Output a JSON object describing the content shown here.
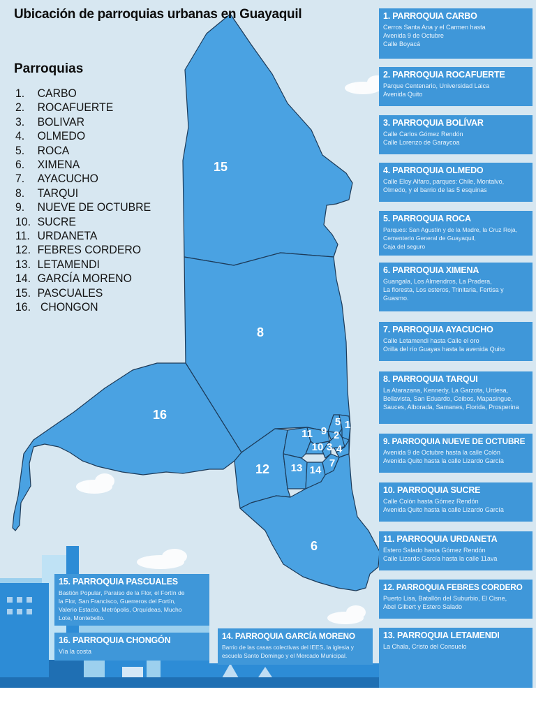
{
  "title": "Ubicación de parroquias urbanas en Guayaquil",
  "legend": {
    "heading": "Parroquias",
    "items": [
      {
        "num": "1.",
        "name": "CARBO"
      },
      {
        "num": "2.",
        "name": "ROCAFUERTE"
      },
      {
        "num": "3.",
        "name": "BOLIVAR"
      },
      {
        "num": "4.",
        "name": "OLMEDO"
      },
      {
        "num": "5.",
        "name": "ROCA"
      },
      {
        "num": "6.",
        "name": "XIMENA"
      },
      {
        "num": "7.",
        "name": "AYACUCHO"
      },
      {
        "num": "8.",
        "name": "TARQUI"
      },
      {
        "num": "9.",
        "name": "NUEVE DE OCTUBRE"
      },
      {
        "num": "10.",
        "name": "SUCRE"
      },
      {
        "num": "11.",
        "name": "URDANETA"
      },
      {
        "num": "12.",
        "name": "FEBRES CORDERO"
      },
      {
        "num": "13.",
        "name": "LETAMENDI"
      },
      {
        "num": "14.",
        "name": "GARCÍA MORENO"
      },
      {
        "num": "15.",
        "name": "PASCUALES"
      },
      {
        "num": "16.",
        "name": " CHONGON"
      }
    ]
  },
  "cards": [
    {
      "id": "carbo",
      "title": "1. PARROQUIA CARBO",
      "desc": [
        "Cerros Santa Ana y el Carmen hasta",
        "Avenida 9 de Octubre",
        "Calle Boyacá"
      ]
    },
    {
      "id": "rocafuerte",
      "title": "2. PARROQUIA ROCAFUERTE",
      "desc": [
        "Parque Centenario, Universidad Laica",
        "Avenida Quito"
      ]
    },
    {
      "id": "bolivar",
      "title": "3. PARROQUIA BOLÍVAR",
      "desc": [
        "Calle Carlos Gómez Rendón",
        "Calle Lorenzo de Garaycoa"
      ]
    },
    {
      "id": "olmedo",
      "title": "4. PARROQUIA OLMEDO",
      "desc": [
        "Calle Eloy Alfaro, parques: Chile, Montalvo,",
        "Olmedo, y el barrio de las 5 esquinas"
      ]
    },
    {
      "id": "roca",
      "title": "5. PARROQUIA ROCA",
      "desc": [
        "Parques: San Agustín y de la Madre, la Cruz Roja,",
        "Cementerio General de Guayaquil,",
        "Caja del seguro"
      ]
    },
    {
      "id": "ximena",
      "title": "6. PARROQUIA XIMENA",
      "desc": [
        "Guangala, Los Almendros, La Pradera,",
        "La floresta, Los esteros, Trinitaria, Fertisa y",
        "Guasmo."
      ]
    },
    {
      "id": "ayacucho",
      "title": "7. PARROQUIA AYACUCHO",
      "desc": [
        "Calle Letamendi hasta Calle el oro",
        "Orilla del río Guayas hasta la avenida Quito"
      ]
    },
    {
      "id": "tarqui",
      "title": "8. PARROQUIA TARQUI",
      "desc": [
        "La Atarazana, Kennedy, La Garzota, Urdesa,",
        "Bellavista, San Eduardo, Ceibos, Mapasingue,",
        "Sauces, Alborada, Samanes, Florida, Prosperina"
      ]
    },
    {
      "id": "nueve-de-octubre",
      "title": "9. PARROQUIA NUEVE DE OCTUBRE",
      "desc": [
        "Avenida 9 de Octubre hasta la calle Colón",
        "Avenida Quito hasta la calle Lizardo García"
      ]
    },
    {
      "id": "sucre",
      "title": "10. PARROQUIA SUCRE",
      "desc": [
        "Calle Colón hasta Gómez Rendón",
        "Avenida Quito hasta la calle Lizardo García"
      ]
    },
    {
      "id": "urdaneta",
      "title": "11. PARROQUIA URDANETA",
      "desc": [
        "Estero Salado hasta Gómez Rendón",
        "Calle Lizardo García hasta la calle 11ava"
      ]
    },
    {
      "id": "febres-cordero",
      "title": "12. PARROQUIA FEBRES CORDERO",
      "desc": [
        "Puerto Lisa, Batallón del Suburbio, El Cisne,",
        "Abel Gilbert y Estero Salado"
      ]
    },
    {
      "id": "letamendi",
      "title": "13. PARROQUIA LETAMENDI",
      "desc": [
        "La Chala, Cristo del Consuelo"
      ]
    },
    {
      "id": "pascuales",
      "title": "15. PARROQUIA PASCUALES",
      "desc": [
        "Bastión Popular, Paraíso de la Flor, el Fortín de",
        "la Flor, San Francisco, Guerreros del Fortín,",
        "Valerio Estacio, Metrópolis, Orquídeas, Mucho",
        "Lote, Montebello."
      ]
    },
    {
      "id": "chongon",
      "title": "16. PARROQUIA CHONGÓN",
      "desc": [
        "Vía la costa"
      ]
    },
    {
      "id": "garcia-moreno",
      "title": "14. PARROQUIA GARCÍA MORENO",
      "desc": [
        "Barrio de las casas colectivas del IEES, la iglesia y",
        "escuela Santo Domingo y el Mercado Municipal."
      ]
    }
  ],
  "map_labels": [
    {
      "id": "1",
      "text": "1"
    },
    {
      "id": "2",
      "text": "2"
    },
    {
      "id": "3",
      "text": "3"
    },
    {
      "id": "4",
      "text": "4"
    },
    {
      "id": "5",
      "text": "5"
    },
    {
      "id": "6",
      "text": "6"
    },
    {
      "id": "7",
      "text": "7"
    },
    {
      "id": "8",
      "text": "8"
    },
    {
      "id": "9",
      "text": "9"
    },
    {
      "id": "10",
      "text": "10"
    },
    {
      "id": "11",
      "text": "11"
    },
    {
      "id": "12",
      "text": "12"
    },
    {
      "id": "13",
      "text": "13"
    },
    {
      "id": "14",
      "text": "14"
    },
    {
      "id": "15",
      "text": "15"
    },
    {
      "id": "16",
      "text": "16"
    }
  ],
  "colors": {
    "background": "#d7e7f1",
    "region_fill": "#4aa2e2",
    "region_border": "#1d3b59",
    "card_fill": "#3f97d9",
    "building": "#2d8cd6"
  }
}
